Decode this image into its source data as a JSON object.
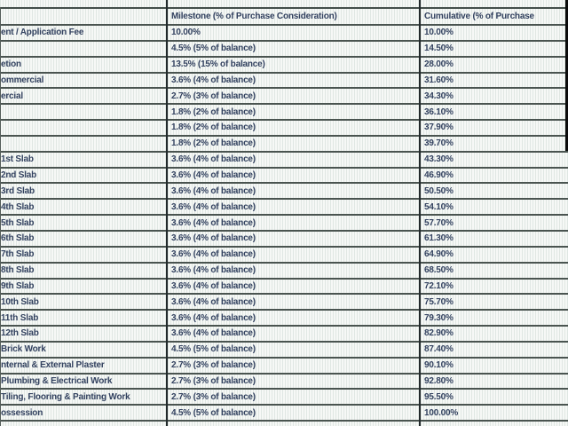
{
  "table": {
    "columns": [
      "",
      "Milestone (% of Purchase Consideration)",
      "Cumulative (% of Purchase"
    ],
    "rows": [
      {
        "label": "ent / Application Fee",
        "milestone": "10.00%",
        "cumulative": "10.00%"
      },
      {
        "label": "",
        "milestone": "4.5% (5% of balance)",
        "cumulative": "14.50%"
      },
      {
        "label": "etion",
        "milestone": "13.5% (15% of balance)",
        "cumulative": "28.00%"
      },
      {
        "label": "ommercial",
        "milestone": "3.6% (4% of balance)",
        "cumulative": "31.60%"
      },
      {
        "label": "ercial",
        "milestone": "2.7% (3% of balance)",
        "cumulative": "34.30%"
      },
      {
        "label": "",
        "milestone": "1.8% (2% of balance)",
        "cumulative": "36.10%"
      },
      {
        "label": "",
        "milestone": "1.8% (2% of balance)",
        "cumulative": "37.90%"
      },
      {
        "label": "",
        "milestone": "1.8% (2% of balance)",
        "cumulative": "39.70%"
      },
      {
        "label": "1st Slab",
        "milestone": "3.6% (4% of balance)",
        "cumulative": "43.30%"
      },
      {
        "label": "2nd Slab",
        "milestone": "3.6% (4% of balance)",
        "cumulative": "46.90%"
      },
      {
        "label": "3rd Slab",
        "milestone": "3.6% (4% of balance)",
        "cumulative": "50.50%"
      },
      {
        "label": "4th Slab",
        "milestone": "3.6% (4% of balance)",
        "cumulative": "54.10%"
      },
      {
        "label": "5th Slab",
        "milestone": "3.6% (4% of balance)",
        "cumulative": "57.70%"
      },
      {
        "label": "6th Slab",
        "milestone": "3.6% (4% of balance)",
        "cumulative": "61.30%"
      },
      {
        "label": "7th Slab",
        "milestone": "3.6% (4% of balance)",
        "cumulative": "64.90%"
      },
      {
        "label": "8th Slab",
        "milestone": "3.6% (4% of balance)",
        "cumulative": "68.50%"
      },
      {
        "label": "9th Slab",
        "milestone": "3.6% (4% of balance)",
        "cumulative": "72.10%"
      },
      {
        "label": "10th Slab",
        "milestone": "3.6% (4% of balance)",
        "cumulative": "75.70%"
      },
      {
        "label": "11th Slab",
        "milestone": "3.6% (4% of balance)",
        "cumulative": "79.30%"
      },
      {
        "label": "12th Slab",
        "milestone": "3.6% (4% of balance)",
        "cumulative": "82.90%"
      },
      {
        "label": "Brick Work",
        "milestone": "4.5% (5% of balance)",
        "cumulative": "87.40%"
      },
      {
        "label": "nternal & External Plaster",
        "milestone": "2.7% (3% of balance)",
        "cumulative": "90.10%"
      },
      {
        "label": "Plumbing & Electrical Work",
        "milestone": "2.7% (3% of balance)",
        "cumulative": "92.80%"
      },
      {
        "label": "Tiling, Flooring & Painting Work",
        "milestone": "2.7% (3% of balance)",
        "cumulative": "95.50%"
      },
      {
        "label": "ossession",
        "milestone": "4.5% (5% of balance)",
        "cumulative": "100.00%"
      }
    ]
  },
  "colors": {
    "text": "#32415f",
    "grid_horizontal": "#4a5450",
    "grid_vertical": "#232a2c",
    "background": "#f6f8f6"
  }
}
